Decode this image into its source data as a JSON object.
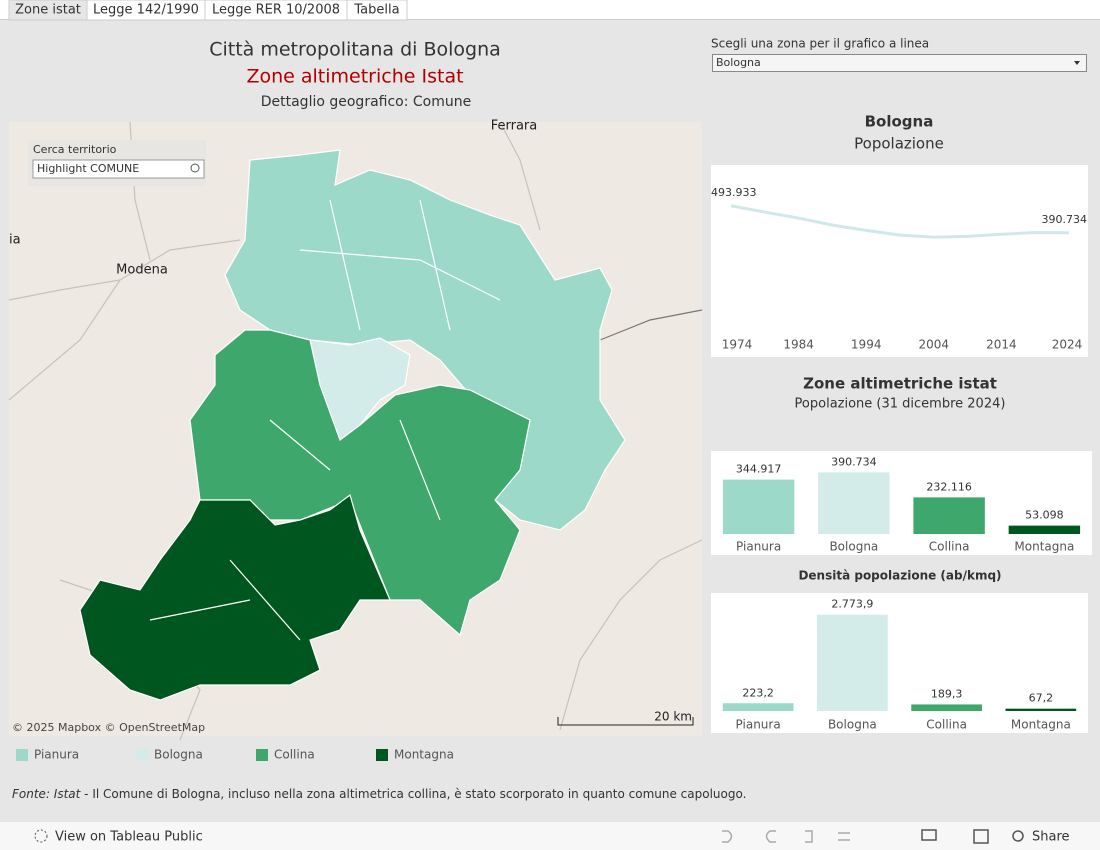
{
  "tabs": [
    "Zone istat",
    "Legge 142/1990",
    "Legge RER 10/2008",
    "Tabella"
  ],
  "header": {
    "title": "Città metropolitana di Bologna",
    "subtitle": "Zone altimetriche Istat",
    "detail": "Dettaglio geografico: Comune"
  },
  "map": {
    "search_label": "Cerca territorio",
    "search_placeholder": "Highlight COMUNE",
    "places": [
      "Ferrara",
      "Modena",
      "ia"
    ],
    "attribution": "© 2025 Mapbox © OpenStreetMap",
    "scale": "20 km"
  },
  "legend": [
    {
      "name": "Pianura",
      "color": "#9dd9c8"
    },
    {
      "name": "Bologna",
      "color": "#d3ecea"
    },
    {
      "name": "Collina",
      "color": "#3ea86c"
    },
    {
      "name": "Montagna",
      "color": "#00561f"
    }
  ],
  "selector": {
    "label": "Scegli una zona per il grafico a linea",
    "value": "Bologna"
  },
  "chart_data": [
    {
      "type": "line",
      "title": "Bologna",
      "subtitle": "Popolazione",
      "x": [
        1974,
        1979,
        1984,
        1989,
        1994,
        1999,
        2004,
        2009,
        2014,
        2019,
        2024
      ],
      "values": [
        493933,
        470000,
        447000,
        420000,
        400000,
        382000,
        374000,
        377000,
        385000,
        392000,
        390734
      ],
      "value_labels": [
        "493.933",
        null,
        null,
        null,
        null,
        null,
        null,
        null,
        null,
        null,
        "390.734"
      ],
      "color": "#cfe9e8",
      "xlim": [
        1974,
        2024
      ],
      "xticks": [
        1974,
        1984,
        1994,
        2004,
        2014,
        2024
      ],
      "ylim": [
        0,
        650000
      ]
    },
    {
      "type": "bar",
      "title": "Zone altimetriche istat",
      "subtitle": "Popolazione (31 dicembre 2024)",
      "categories": [
        "Pianura",
        "Bologna",
        "Collina",
        "Montagna"
      ],
      "values": [
        344917,
        390734,
        232116,
        53098
      ],
      "value_labels": [
        "344.917",
        "390.734",
        "232.116",
        "53.098"
      ],
      "colors": [
        "#9dd9c8",
        "#d3ecea",
        "#3ea86c",
        "#00561f"
      ],
      "ylim": [
        0,
        520000
      ]
    },
    {
      "type": "bar",
      "title": "Densità popolazione (ab/kmq)",
      "categories": [
        "Pianura",
        "Bologna",
        "Collina",
        "Montagna"
      ],
      "values": [
        223.2,
        2773.9,
        189.3,
        67.2
      ],
      "value_labels": [
        "223,2",
        "2.773,9",
        "189,3",
        "67,2"
      ],
      "colors": [
        "#9dd9c8",
        "#d3ecea",
        "#3ea86c",
        "#00561f"
      ],
      "ylim": [
        0,
        3400
      ]
    }
  ],
  "footnote": {
    "source": "Fonte: Istat",
    "text": " - Il Comune di Bologna, incluso nella zona altimetrica collina, è stato scorporato in quanto comune capoluogo."
  },
  "toolbar": {
    "view": "View on Tableau Public",
    "share": "Share"
  }
}
